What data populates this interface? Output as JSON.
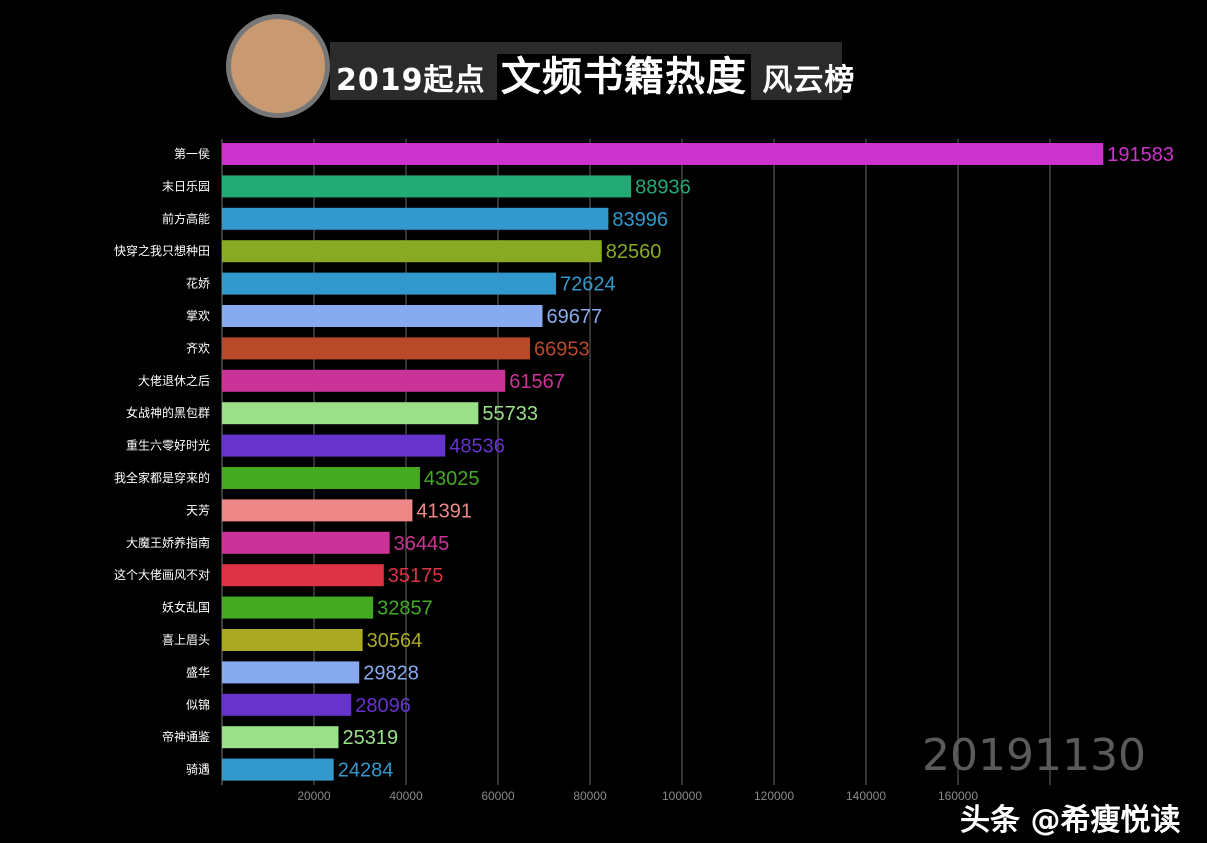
{
  "header": {
    "title_prefix": "2019起点",
    "title_main": "文频书籍热度",
    "title_suffix": "风云榜"
  },
  "date_label": "20191130",
  "watermark": "头条 @希瘦悦读",
  "chart_data": {
    "type": "bar",
    "orientation": "horizontal",
    "title": "2019起点文频书籍热度风云榜",
    "categories": [
      "第一侯",
      "末日乐园",
      "前方高能",
      "快穿之我只想种田",
      "花娇",
      "掌欢",
      "齐欢",
      "大佬退休之后",
      "女战神的黑包群",
      "重生六零好时光",
      "我全家都是穿来的",
      "天芳",
      "大魔王娇养指南",
      "这个大佬画风不对",
      "妖女乱国",
      "喜上眉头",
      "盛华",
      "似锦",
      "帝神通鉴",
      "骑遇"
    ],
    "values": [
      191583,
      88936,
      83996,
      82560,
      72624,
      69677,
      66953,
      61567,
      55733,
      48536,
      43025,
      41391,
      36445,
      35175,
      32857,
      30564,
      29828,
      28096,
      25319,
      24284
    ],
    "colors": [
      "#cc33cc",
      "#22aa77",
      "#3399cc",
      "#88aa22",
      "#3399cc",
      "#88aaee",
      "#b84a2a",
      "#cc3399",
      "#99e088",
      "#6633cc",
      "#44aa22",
      "#ee8888",
      "#cc3399",
      "#dd3344",
      "#44aa22",
      "#aaaa22",
      "#88aaee",
      "#6633cc",
      "#99e088",
      "#3399cc"
    ],
    "xticks": [
      20000,
      40000,
      60000,
      80000,
      100000,
      120000,
      140000,
      160000,
      180000
    ],
    "xtick_labels": [
      "20000",
      "40000",
      "60000",
      "80000",
      "100000",
      "120000",
      "140000",
      "160000",
      ""
    ],
    "xlim": [
      0,
      200000
    ],
    "grid": true
  }
}
